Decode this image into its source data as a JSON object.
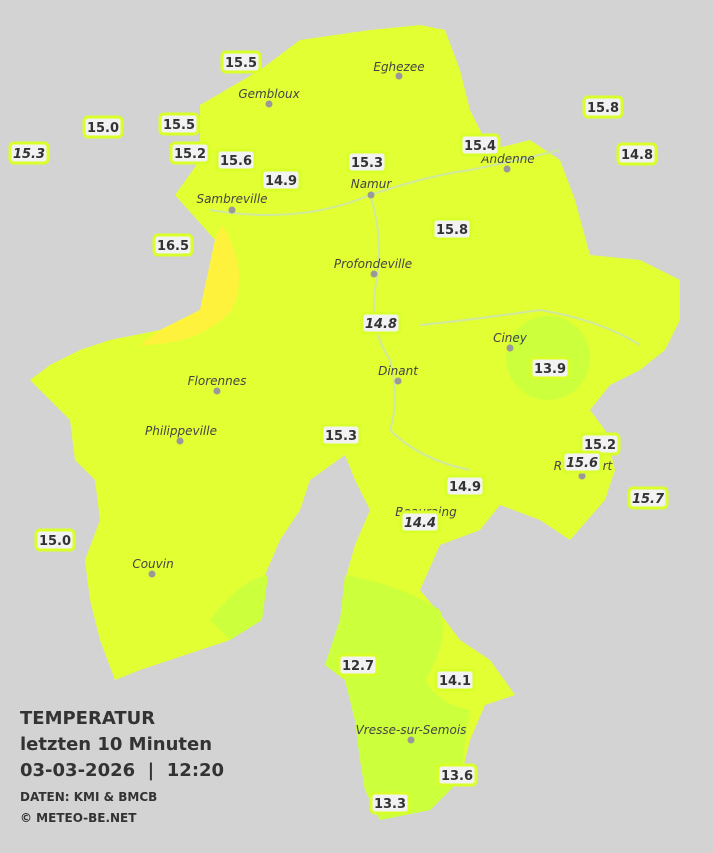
{
  "legend": {
    "title": "TEMPERATUR",
    "period": "letzten 10 Minuten",
    "datetime": "03-03-2026  |  12:20",
    "source": "DATEN: KMI & BMCB",
    "copyright": "© METEO-BE.NET"
  },
  "cities": [
    "Eghezee",
    "Gembloux",
    "Andenne",
    "Namur",
    "Sambreville",
    "Profondeville",
    "Ciney",
    "Dinant",
    "Florennes",
    "Philippeville",
    "Rochefort",
    "Beauraing",
    "Couvin",
    "Vresse-sur-Semois"
  ],
  "stations": [
    {
      "temperature": "15.5"
    },
    {
      "temperature": "15.0"
    },
    {
      "temperature": "15.3",
      "italic": true
    },
    {
      "temperature": "15.5"
    },
    {
      "temperature": "15.2"
    },
    {
      "temperature": "15.6"
    },
    {
      "temperature": "14.9"
    },
    {
      "temperature": "15.3"
    },
    {
      "temperature": "15.4"
    },
    {
      "temperature": "15.8"
    },
    {
      "temperature": "14.8"
    },
    {
      "temperature": "16.5"
    },
    {
      "temperature": "15.8"
    },
    {
      "temperature": "14.8",
      "italic": true
    },
    {
      "temperature": "13.9"
    },
    {
      "temperature": "15.3"
    },
    {
      "temperature": "15.2"
    },
    {
      "temperature": "15.6",
      "italic": true
    },
    {
      "temperature": "15.7",
      "italic": true
    },
    {
      "temperature": "14.9"
    },
    {
      "temperature": "14.4",
      "italic": true
    },
    {
      "temperature": "15.0"
    },
    {
      "temperature": "12.7"
    },
    {
      "temperature": "14.1"
    },
    {
      "temperature": "13.6"
    },
    {
      "temperature": "13.3"
    }
  ]
}
